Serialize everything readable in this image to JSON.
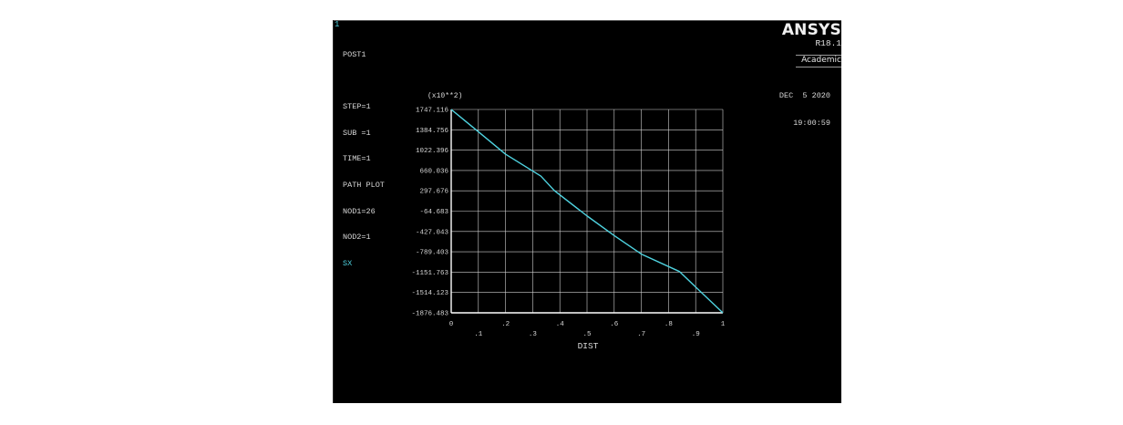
{
  "window": {
    "number": "1"
  },
  "info": {
    "lines": [
      "POST1",
      "",
      "STEP=1",
      "SUB =1",
      "TIME=1",
      "PATH PLOT",
      "NOD1=26",
      "NOD2=1"
    ],
    "result_label": "SX"
  },
  "brand": {
    "name": "ANSYS",
    "version": "R18.1",
    "edition": "Academic"
  },
  "timestamp": {
    "date": "DEC  5 2020",
    "time": "19:00:59"
  },
  "colors": {
    "background": "#000000",
    "curve": "#4fd3e0",
    "grid": "#d0d0d0",
    "text": "#d8d8d8"
  },
  "chart_data": {
    "type": "line",
    "xlabel": "DIST",
    "ylabel": "",
    "y_multiplier_label": "(x10**2)",
    "xlim": [
      0,
      1
    ],
    "ylim": [
      -1876.483,
      1747.116
    ],
    "x_ticks": [
      {
        "value": 0,
        "label": "0"
      },
      {
        "value": 0.1,
        "label": ".1"
      },
      {
        "value": 0.2,
        "label": ".2"
      },
      {
        "value": 0.3,
        "label": ".3"
      },
      {
        "value": 0.4,
        "label": ".4"
      },
      {
        "value": 0.5,
        "label": ".5"
      },
      {
        "value": 0.6,
        "label": ".6"
      },
      {
        "value": 0.7,
        "label": ".7"
      },
      {
        "value": 0.8,
        "label": ".8"
      },
      {
        "value": 0.9,
        "label": ".9"
      },
      {
        "value": 1,
        "label": "1"
      }
    ],
    "y_ticks": [
      {
        "value": 1747.116,
        "label": "1747.116"
      },
      {
        "value": 1384.756,
        "label": "1384.756"
      },
      {
        "value": 1022.396,
        "label": "1022.396"
      },
      {
        "value": 660.036,
        "label": "660.036"
      },
      {
        "value": 297.676,
        "label": "297.676"
      },
      {
        "value": -64.683,
        "label": "-64.683"
      },
      {
        "value": -427.043,
        "label": "-427.043"
      },
      {
        "value": -789.403,
        "label": "-789.403"
      },
      {
        "value": -1151.763,
        "label": "-1151.763"
      },
      {
        "value": -1514.123,
        "label": "-1514.123"
      },
      {
        "value": -1876.483,
        "label": "-1876.483"
      }
    ],
    "grid": true,
    "series": [
      {
        "name": "SX",
        "x": [
          0,
          0.1,
          0.2,
          0.33,
          0.38,
          0.5,
          0.6,
          0.7,
          0.84,
          1.0
        ],
        "y": [
          1747.116,
          1350,
          950,
          560,
          300,
          -150,
          -500,
          -830,
          -1140,
          -1876.483
        ]
      }
    ]
  }
}
